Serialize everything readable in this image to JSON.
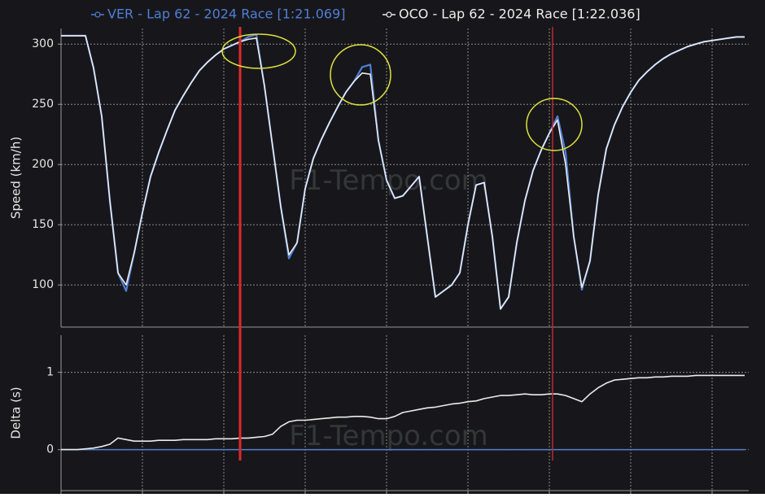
{
  "chart_data": [
    {
      "type": "line",
      "ylabel": "Speed (km/h)",
      "watermark": "F1-Tempo.com",
      "ylim": [
        65,
        313
      ],
      "yticks": [
        100,
        150,
        200,
        250,
        300
      ],
      "grid": true,
      "legend": "top",
      "series": [
        {
          "name": "VER - Lap 62 - 2024 Race [1:21.069]",
          "color": "#4f7fd6",
          "values": [
            307,
            307,
            307,
            307,
            280,
            240,
            170,
            110,
            95,
            127,
            160,
            190,
            210,
            228,
            245,
            257,
            268,
            278,
            285,
            291,
            296,
            299,
            302,
            306,
            308,
            265,
            215,
            165,
            122,
            135,
            180,
            205,
            221,
            235,
            248,
            260,
            269,
            281,
            283,
            220,
            187,
            172,
            174,
            182,
            190,
            140,
            90,
            95,
            100,
            110,
            150,
            183,
            185,
            140,
            80,
            90,
            135,
            170,
            195,
            212,
            226,
            240,
            210,
            140,
            96,
            120,
            175,
            213,
            233,
            248,
            260,
            270,
            277,
            283,
            288,
            292,
            295,
            298,
            300,
            302,
            303,
            304,
            305,
            306,
            306
          ]
        },
        {
          "name": "OCO - Lap 62 - 2024 Race [1:22.036]",
          "color": "#ececec",
          "values": [
            307,
            307,
            307,
            307,
            280,
            240,
            170,
            110,
            100,
            127,
            160,
            190,
            210,
            228,
            245,
            257,
            268,
            278,
            285,
            291,
            296,
            299,
            302,
            304,
            305,
            265,
            215,
            165,
            125,
            135,
            180,
            205,
            221,
            235,
            248,
            260,
            269,
            276,
            275,
            220,
            187,
            172,
            174,
            182,
            190,
            140,
            90,
            95,
            100,
            110,
            150,
            183,
            185,
            140,
            80,
            90,
            135,
            170,
            195,
            212,
            226,
            237,
            200,
            140,
            98,
            120,
            175,
            213,
            233,
            248,
            260,
            270,
            277,
            283,
            288,
            292,
            295,
            298,
            300,
            302,
            303,
            304,
            305,
            306,
            306
          ]
        }
      ]
    },
    {
      "type": "line",
      "ylabel": "Delta (s)",
      "watermark": "F1-Tempo.com",
      "ylim": [
        -0.53,
        1.48
      ],
      "yticks": [
        0,
        1
      ],
      "grid": true,
      "series": [
        {
          "color": "#ececec",
          "values": [
            0,
            0,
            0,
            0.01,
            0.02,
            0.04,
            0.07,
            0.15,
            0.13,
            0.11,
            0.11,
            0.11,
            0.12,
            0.12,
            0.12,
            0.13,
            0.13,
            0.13,
            0.13,
            0.14,
            0.14,
            0.14,
            0.15,
            0.15,
            0.16,
            0.17,
            0.2,
            0.3,
            0.36,
            0.38,
            0.38,
            0.39,
            0.4,
            0.41,
            0.42,
            0.42,
            0.43,
            0.43,
            0.42,
            0.4,
            0.4,
            0.43,
            0.48,
            0.5,
            0.52,
            0.54,
            0.55,
            0.57,
            0.59,
            0.6,
            0.62,
            0.63,
            0.66,
            0.68,
            0.7,
            0.7,
            0.71,
            0.72,
            0.71,
            0.71,
            0.72,
            0.72,
            0.7,
            0.66,
            0.62,
            0.72,
            0.8,
            0.86,
            0.9,
            0.91,
            0.92,
            0.93,
            0.93,
            0.94,
            0.94,
            0.95,
            0.95,
            0.95,
            0.96,
            0.96,
            0.96,
            0.96,
            0.96,
            0.96,
            0.96
          ]
        }
      ]
    }
  ]
}
